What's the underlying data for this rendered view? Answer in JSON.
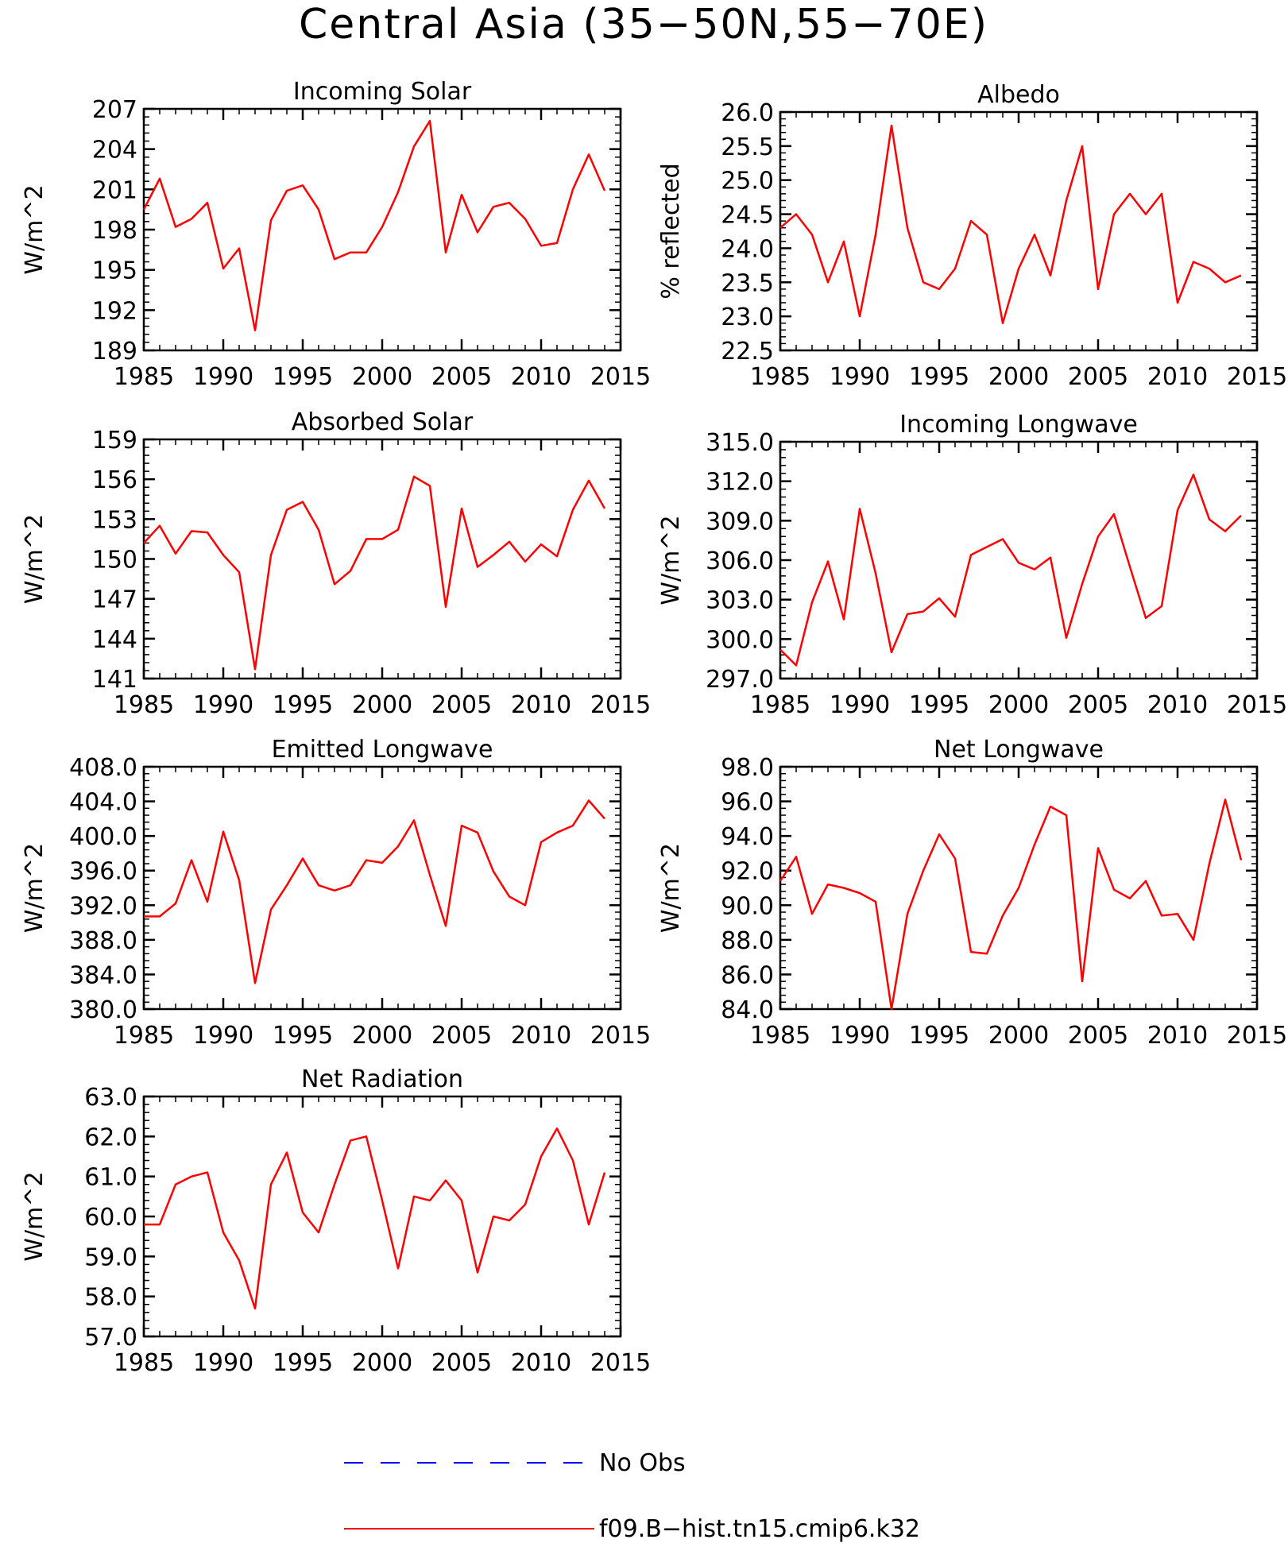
{
  "figure": {
    "title": "Central Asia (35−50N,55−70E)",
    "legend": [
      {
        "label": "No Obs",
        "style": "dashed",
        "color": "#0000ff"
      },
      {
        "label": "f09.B−hist.tn15.cmip6.k32",
        "style": "solid",
        "color": "#ff0000"
      }
    ]
  },
  "chart_data": [
    {
      "type": "line",
      "title": "Incoming Solar",
      "xlabel": "",
      "ylabel": "W/m^2",
      "xlim": [
        1985,
        2015
      ],
      "ylim": [
        189,
        207
      ],
      "x_ticks": [
        "1985",
        "1990",
        "1995",
        "2000",
        "2005",
        "2010",
        "2015"
      ],
      "y_ticks": [
        "189",
        "192",
        "195",
        "198",
        "201",
        "204",
        "207"
      ],
      "series": [
        {
          "color": "#ff0000",
          "x": [
            1985,
            1986,
            1987,
            1988,
            1989,
            1990,
            1991,
            1992,
            1993,
            1994,
            1995,
            1996,
            1997,
            1998,
            1999,
            2000,
            2001,
            2002,
            2003,
            2004,
            2005,
            2006,
            2007,
            2008,
            2009,
            2010,
            2011,
            2012,
            2013,
            2014
          ],
          "values": [
            199.5,
            201.8,
            198.2,
            198.8,
            200.0,
            195.1,
            196.6,
            190.5,
            198.7,
            200.9,
            201.3,
            199.5,
            195.8,
            196.3,
            196.3,
            198.2,
            200.8,
            204.2,
            206.1,
            196.3,
            200.6,
            197.8,
            199.7,
            200.0,
            198.8,
            196.8,
            197.0,
            201.0,
            203.6,
            200.9
          ]
        }
      ]
    },
    {
      "type": "line",
      "title": "Albedo",
      "xlabel": "",
      "ylabel": "% reflected",
      "xlim": [
        1985,
        2015
      ],
      "ylim": [
        22.5,
        26.0
      ],
      "x_ticks": [
        "1985",
        "1990",
        "1995",
        "2000",
        "2005",
        "2010",
        "2015"
      ],
      "y_ticks": [
        "22.5",
        "23.0",
        "23.5",
        "24.0",
        "24.5",
        "25.0",
        "25.5",
        "26.0"
      ],
      "series": [
        {
          "color": "#ff0000",
          "x": [
            1985,
            1986,
            1987,
            1988,
            1989,
            1990,
            1991,
            1992,
            1993,
            1994,
            1995,
            1996,
            1997,
            1998,
            1999,
            2000,
            2001,
            2002,
            2003,
            2004,
            2005,
            2006,
            2007,
            2008,
            2009,
            2010,
            2011,
            2012,
            2013,
            2014
          ],
          "values": [
            24.3,
            24.5,
            24.2,
            23.5,
            24.1,
            23.0,
            24.2,
            25.8,
            24.3,
            23.5,
            23.4,
            23.7,
            24.4,
            24.2,
            22.9,
            23.7,
            24.2,
            23.6,
            24.7,
            25.5,
            23.4,
            24.5,
            24.8,
            24.5,
            24.8,
            23.2,
            23.8,
            23.7,
            23.5,
            23.6
          ]
        }
      ]
    },
    {
      "type": "line",
      "title": "Absorbed Solar",
      "xlabel": "",
      "ylabel": "W/m^2",
      "xlim": [
        1985,
        2015
      ],
      "ylim": [
        141,
        159
      ],
      "x_ticks": [
        "1985",
        "1990",
        "1995",
        "2000",
        "2005",
        "2010",
        "2015"
      ],
      "y_ticks": [
        "141",
        "144",
        "147",
        "150",
        "153",
        "156",
        "159"
      ],
      "series": [
        {
          "color": "#ff0000",
          "x": [
            1985,
            1986,
            1987,
            1988,
            1989,
            1990,
            1991,
            1992,
            1993,
            1994,
            1995,
            1996,
            1997,
            1998,
            1999,
            2000,
            2001,
            2002,
            2003,
            2004,
            2005,
            2006,
            2007,
            2008,
            2009,
            2010,
            2011,
            2012,
            2013,
            2014
          ],
          "values": [
            151.2,
            152.5,
            150.4,
            152.1,
            152.0,
            150.3,
            149.0,
            141.7,
            150.3,
            153.7,
            154.3,
            152.2,
            148.1,
            149.1,
            151.5,
            151.5,
            152.2,
            156.2,
            155.5,
            146.4,
            153.8,
            149.4,
            150.3,
            151.3,
            149.8,
            151.1,
            150.2,
            153.7,
            155.9,
            153.8
          ]
        }
      ]
    },
    {
      "type": "line",
      "title": "Incoming Longwave",
      "xlabel": "",
      "ylabel": "W/m^2",
      "xlim": [
        1985,
        2015
      ],
      "ylim": [
        297,
        315
      ],
      "x_ticks": [
        "1985",
        "1990",
        "1995",
        "2000",
        "2005",
        "2010",
        "2015"
      ],
      "y_ticks": [
        "297.0",
        "300.0",
        "303.0",
        "306.0",
        "309.0",
        "312.0",
        "315.0"
      ],
      "series": [
        {
          "color": "#ff0000",
          "x": [
            1985,
            1986,
            1987,
            1988,
            1989,
            1990,
            1991,
            1992,
            1993,
            1994,
            1995,
            1996,
            1997,
            1998,
            1999,
            2000,
            2001,
            2002,
            2003,
            2004,
            2005,
            2006,
            2007,
            2008,
            2009,
            2010,
            2011,
            2012,
            2013,
            2014
          ],
          "values": [
            299.2,
            298.0,
            302.8,
            305.9,
            301.5,
            309.9,
            305.0,
            299.0,
            301.9,
            302.1,
            303.1,
            301.7,
            306.4,
            307.0,
            307.6,
            305.8,
            305.3,
            306.2,
            300.1,
            304.2,
            307.8,
            309.5,
            305.5,
            301.6,
            302.5,
            309.8,
            312.5,
            309.1,
            308.2,
            309.4
          ]
        }
      ]
    },
    {
      "type": "line",
      "title": "Emitted Longwave",
      "xlabel": "",
      "ylabel": "W/m^2",
      "xlim": [
        1985,
        2015
      ],
      "ylim": [
        380,
        408
      ],
      "x_ticks": [
        "1985",
        "1990",
        "1995",
        "2000",
        "2005",
        "2010",
        "2015"
      ],
      "y_ticks": [
        "380.0",
        "384.0",
        "388.0",
        "392.0",
        "396.0",
        "400.0",
        "404.0",
        "408.0"
      ],
      "series": [
        {
          "color": "#ff0000",
          "x": [
            1985,
            1986,
            1987,
            1988,
            1989,
            1990,
            1991,
            1992,
            1993,
            1994,
            1995,
            1996,
            1997,
            1998,
            1999,
            2000,
            2001,
            2002,
            2003,
            2004,
            2005,
            2006,
            2007,
            2008,
            2009,
            2010,
            2011,
            2012,
            2013,
            2014
          ],
          "values": [
            390.7,
            390.7,
            392.2,
            397.2,
            392.4,
            400.5,
            394.9,
            383.0,
            391.5,
            394.3,
            397.4,
            394.3,
            393.7,
            394.3,
            397.2,
            396.9,
            398.8,
            401.8,
            395.5,
            389.6,
            401.2,
            400.4,
            395.9,
            393.0,
            392.0,
            399.3,
            400.4,
            401.2,
            404.1,
            402.0
          ]
        }
      ]
    },
    {
      "type": "line",
      "title": "Net Longwave",
      "xlabel": "",
      "ylabel": "W/m^2",
      "xlim": [
        1985,
        2015
      ],
      "ylim": [
        84,
        98
      ],
      "x_ticks": [
        "1985",
        "1990",
        "1995",
        "2000",
        "2005",
        "2010",
        "2015"
      ],
      "y_ticks": [
        "84.0",
        "86.0",
        "88.0",
        "90.0",
        "92.0",
        "94.0",
        "96.0",
        "98.0"
      ],
      "series": [
        {
          "color": "#ff0000",
          "x": [
            1985,
            1986,
            1987,
            1988,
            1989,
            1990,
            1991,
            1992,
            1993,
            1994,
            1995,
            1996,
            1997,
            1998,
            1999,
            2000,
            2001,
            2002,
            2003,
            2004,
            2005,
            2006,
            2007,
            2008,
            2009,
            2010,
            2011,
            2012,
            2013,
            2014
          ],
          "values": [
            91.4,
            92.8,
            89.5,
            91.2,
            91.0,
            90.7,
            90.2,
            84.0,
            89.5,
            92.0,
            94.1,
            92.7,
            87.3,
            87.2,
            89.4,
            91.0,
            93.5,
            95.7,
            95.2,
            85.6,
            93.3,
            90.9,
            90.4,
            91.4,
            89.4,
            89.5,
            88.0,
            92.4,
            96.1,
            92.6
          ]
        }
      ]
    },
    {
      "type": "line",
      "title": "Net Radiation",
      "xlabel": "",
      "ylabel": "W/m^2",
      "xlim": [
        1985,
        2015
      ],
      "ylim": [
        57,
        63
      ],
      "x_ticks": [
        "1985",
        "1990",
        "1995",
        "2000",
        "2005",
        "2010",
        "2015"
      ],
      "y_ticks": [
        "57.0",
        "58.0",
        "59.0",
        "60.0",
        "61.0",
        "62.0",
        "63.0"
      ],
      "series": [
        {
          "color": "#ff0000",
          "x": [
            1985,
            1986,
            1987,
            1988,
            1989,
            1990,
            1991,
            1992,
            1993,
            1994,
            1995,
            1996,
            1997,
            1998,
            1999,
            2000,
            2001,
            2002,
            2003,
            2004,
            2005,
            2006,
            2007,
            2008,
            2009,
            2010,
            2011,
            2012,
            2013,
            2014
          ],
          "values": [
            59.8,
            59.8,
            60.8,
            61.0,
            61.1,
            59.6,
            58.9,
            57.7,
            60.8,
            61.6,
            60.1,
            59.6,
            60.8,
            61.9,
            62.0,
            60.4,
            58.7,
            60.5,
            60.4,
            60.9,
            60.4,
            58.6,
            60.0,
            59.9,
            60.3,
            61.5,
            62.2,
            61.4,
            59.8,
            61.1
          ]
        }
      ]
    }
  ]
}
